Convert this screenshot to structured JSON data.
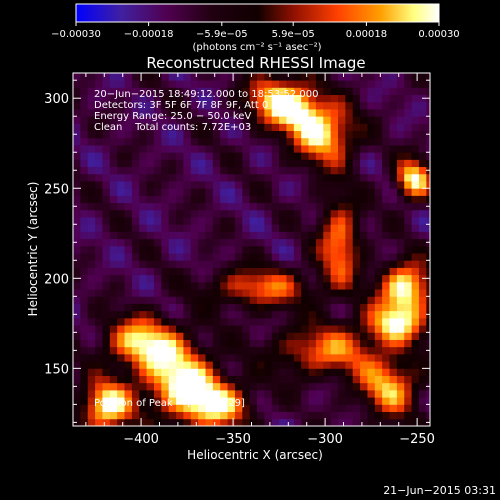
{
  "chart_data": {
    "type": "heatmap",
    "title": "Reconstructed RHESSI Image",
    "xlabel": "Heliocentric X (arcsec)",
    "ylabel": "Heliocentric Y (arcsec)",
    "xlim": [
      -437,
      -243
    ],
    "ylim": [
      118,
      314
    ],
    "xticks": [
      -400,
      -350,
      -300,
      -250
    ],
    "xtick_labels": [
      "−400",
      "−350",
      "−300",
      "−250"
    ],
    "yticks": [
      150,
      200,
      250,
      300
    ],
    "ytick_labels": [
      "150",
      "200",
      "250",
      "300"
    ],
    "colorbar": {
      "range": [
        -0.0003,
        0.0003
      ],
      "ticks": [
        -0.0003,
        -0.00018,
        -5.9e-05,
        5.9e-05,
        0.00018,
        0.0003
      ],
      "tick_labels": [
        "−0.00030",
        "−0.00018",
        "−5.9e−05",
        "5.9e−05",
        "0.00018",
        "0.00030"
      ],
      "unit_label": "(photons cm⁻² s⁻¹ asec⁻²)"
    },
    "annotations": [
      "20−Jun−2015 18:49:12.000 to 18:53:52.000",
      "Detectors: 3F 5F 6F 7F 8F 9F, Att 0",
      "Energy Range: 25.0 − 50.0 keV",
      "Clean    Total counts: 7.72E+03"
    ],
    "peak_label": "Position of Peak = [−419,129]",
    "peak": {
      "x": -419,
      "y": 129
    },
    "bright_sources": [
      {
        "x": -252,
        "y": 255,
        "value": 0.00028,
        "sx": 7,
        "sy": 8
      },
      {
        "x": -256,
        "y": 195,
        "value": 0.0003,
        "sx": 10,
        "sy": 10
      },
      {
        "x": -262,
        "y": 175,
        "value": 0.00022,
        "sx": 12,
        "sy": 8
      },
      {
        "x": -300,
        "y": 280,
        "value": 0.00025,
        "sx": 12,
        "sy": 12
      },
      {
        "x": -315,
        "y": 295,
        "value": 0.0002,
        "sx": 10,
        "sy": 10
      },
      {
        "x": -292,
        "y": 220,
        "value": 0.00018,
        "sx": 8,
        "sy": 18
      },
      {
        "x": -335,
        "y": 195,
        "value": 0.00015,
        "sx": 20,
        "sy": 8
      },
      {
        "x": -400,
        "y": 165,
        "value": 0.00024,
        "sx": 14,
        "sy": 10
      },
      {
        "x": -380,
        "y": 145,
        "value": 0.00026,
        "sx": 14,
        "sy": 14
      },
      {
        "x": -419,
        "y": 129,
        "value": 0.0003,
        "sx": 10,
        "sy": 10
      },
      {
        "x": -360,
        "y": 130,
        "value": 0.00024,
        "sx": 14,
        "sy": 10
      },
      {
        "x": -300,
        "y": 160,
        "value": 0.00016,
        "sx": 20,
        "sy": 10
      },
      {
        "x": -265,
        "y": 140,
        "value": 0.0002,
        "sx": 12,
        "sy": 12
      },
      {
        "x": -330,
        "y": 300,
        "value": 0.00015,
        "sx": 10,
        "sy": 10
      }
    ],
    "background_value": -0.00013
  },
  "footer": {
    "date": "21−Jun−2015 03:31"
  },
  "colors": {
    "background": "#000000",
    "foreground": "#ffffff",
    "colormap_stops": [
      "#0000ff",
      "#4020a0",
      "#500050",
      "#000000",
      "#901000",
      "#ff4000",
      "#ffa000",
      "#ffff80",
      "#ffffff"
    ]
  }
}
